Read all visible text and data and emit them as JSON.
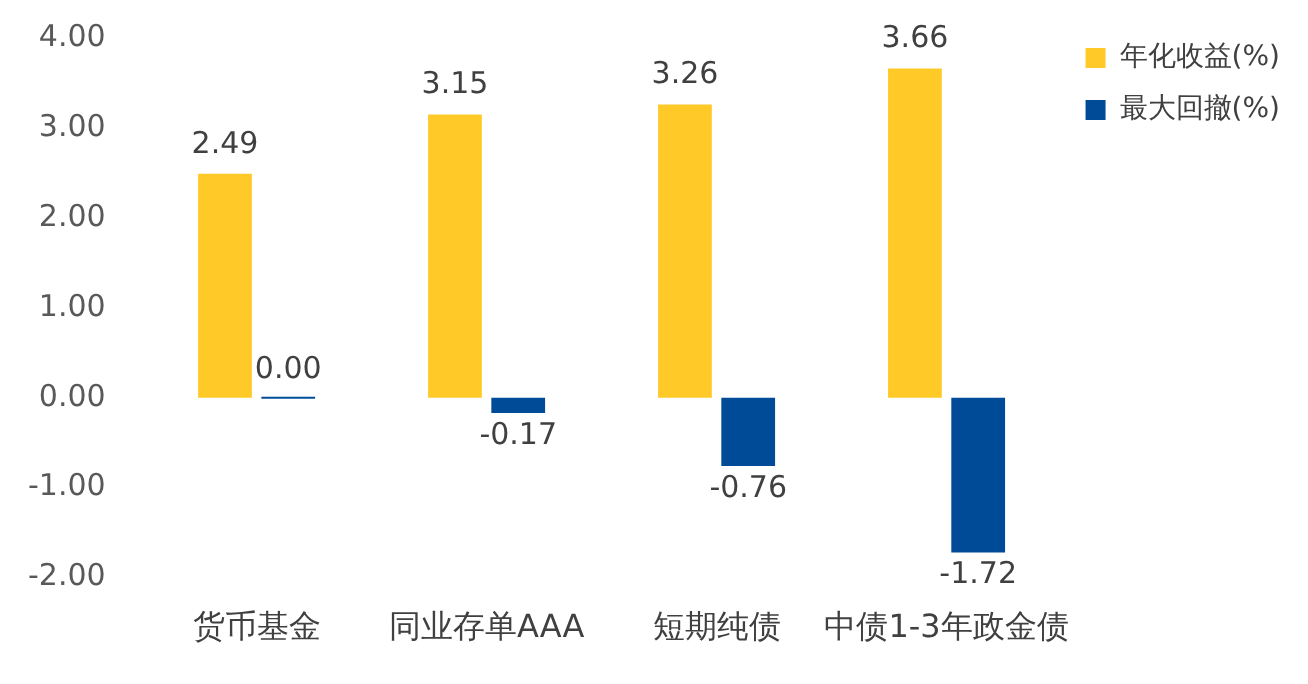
{
  "chart_data": {
    "type": "bar",
    "categories": [
      "货币基金",
      "同业存单AAA",
      "短期纯债",
      "中债1-3年政金债"
    ],
    "series": [
      {
        "name": "年化收益(%)",
        "color": "#ffca28",
        "values": [
          2.49,
          3.15,
          3.26,
          3.66
        ],
        "value_labels": [
          "2.49",
          "3.15",
          "3.26",
          "3.66"
        ]
      },
      {
        "name": "最大回撤(%)",
        "color": "#004b97",
        "values": [
          0,
          -0.17,
          -0.76,
          -1.72
        ],
        "value_labels": [
          "0.00",
          "-0.17",
          "-0.76",
          "-1.72"
        ]
      }
    ],
    "ylim": [
      -2,
      4
    ],
    "yticks": [
      {
        "value": -2,
        "label": "-2.00"
      },
      {
        "value": -1,
        "label": "-1.00"
      },
      {
        "value": 0,
        "label": "0.00"
      },
      {
        "value": 1,
        "label": "1.00"
      },
      {
        "value": 2,
        "label": "2.00"
      },
      {
        "value": 3,
        "label": "3.00"
      },
      {
        "value": 4,
        "label": "4.00"
      }
    ],
    "grid": false,
    "legend": "top right"
  }
}
